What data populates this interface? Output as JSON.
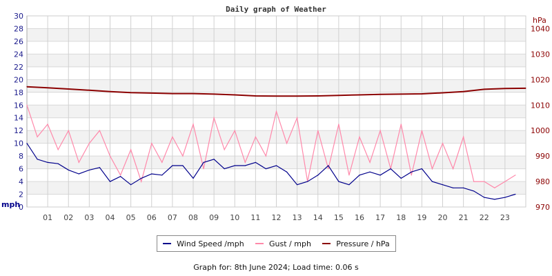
{
  "chart_data": {
    "type": "line",
    "title": "Daily graph of Weather",
    "y_left": {
      "label": "mph",
      "range": [
        0,
        30
      ],
      "ticks": [
        0,
        2,
        4,
        6,
        8,
        10,
        12,
        14,
        16,
        18,
        20,
        22,
        24,
        26,
        28,
        30
      ],
      "color": "#1a1a8c"
    },
    "y_right": {
      "label": "hPa",
      "range": [
        970,
        1045
      ],
      "ticks": [
        970,
        980,
        990,
        1000,
        1010,
        1020,
        1030,
        1040
      ],
      "color": "#8b0000"
    },
    "x": {
      "range": [
        0,
        24
      ],
      "tick_labels": [
        "01",
        "02",
        "03",
        "04",
        "05",
        "06",
        "07",
        "08",
        "09",
        "10",
        "11",
        "12",
        "13",
        "14",
        "15",
        "16",
        "17",
        "18",
        "19",
        "20",
        "21",
        "22",
        "23"
      ]
    },
    "grid": true,
    "series": [
      {
        "name": "Wind Speed /mph",
        "color": "#00008b",
        "axis": "left",
        "x": [
          0,
          0.5,
          1,
          1.5,
          2,
          2.5,
          3,
          3.5,
          4,
          4.5,
          5,
          5.5,
          6,
          6.5,
          7,
          7.5,
          8,
          8.5,
          9,
          9.5,
          10,
          10.5,
          11,
          11.5,
          12,
          12.5,
          13,
          13.5,
          14,
          14.5,
          15,
          15.5,
          16,
          16.5,
          17,
          17.5,
          18,
          18.5,
          19,
          19.5,
          20,
          20.5,
          21,
          21.5,
          22,
          22.5,
          23,
          23.5
        ],
        "values": [
          10,
          7.5,
          7,
          6.8,
          5.8,
          5.2,
          5.8,
          6.2,
          4,
          4.8,
          3.5,
          4.5,
          5.2,
          5,
          6.5,
          6.5,
          4.5,
          7,
          7.5,
          6,
          6.5,
          6.5,
          7,
          6,
          6.5,
          5.5,
          3.5,
          4,
          5,
          6.5,
          4,
          3.5,
          5,
          5.5,
          5,
          6,
          4.5,
          5.5,
          6,
          4,
          3.5,
          3,
          3,
          2.5,
          1.5,
          1.2,
          1.5,
          2
        ]
      },
      {
        "name": "Gust / mph",
        "color": "#ff88aa",
        "axis": "left",
        "x": [
          0,
          0.5,
          1,
          1.5,
          2,
          2.5,
          3,
          3.5,
          4,
          4.5,
          5,
          5.5,
          6,
          6.5,
          7,
          7.5,
          8,
          8.5,
          9,
          9.5,
          10,
          10.5,
          11,
          11.5,
          12,
          12.5,
          13,
          13.5,
          14,
          14.5,
          15,
          15.5,
          16,
          16.5,
          17,
          17.5,
          18,
          18.5,
          19,
          19.5,
          20,
          20.5,
          21,
          21.5,
          22,
          22.5,
          23,
          23.5
        ],
        "values": [
          16,
          11,
          13,
          9,
          12,
          7,
          10,
          12,
          8,
          5,
          9,
          4,
          10,
          7,
          11,
          8,
          13,
          6,
          14,
          9,
          12,
          7,
          11,
          8,
          15,
          10,
          14,
          4,
          12,
          6,
          13,
          5,
          11,
          7,
          12,
          6,
          13,
          5,
          12,
          6,
          10,
          6,
          11,
          4,
          4,
          3,
          4,
          5
        ]
      },
      {
        "name": "Pressure / hPa",
        "color": "#8b0000",
        "axis": "right",
        "x": [
          0,
          1,
          2,
          3,
          4,
          5,
          6,
          7,
          8,
          9,
          10,
          11,
          12,
          13,
          14,
          15,
          16,
          17,
          18,
          19,
          20,
          21,
          22,
          23,
          24
        ],
        "values": [
          1017.2,
          1016.8,
          1016.3,
          1015.8,
          1015.3,
          1014.9,
          1014.7,
          1014.5,
          1014.5,
          1014.3,
          1014,
          1013.6,
          1013.5,
          1013.5,
          1013.6,
          1013.8,
          1014,
          1014.2,
          1014.3,
          1014.4,
          1014.8,
          1015.3,
          1016.2,
          1016.5,
          1016.6
        ]
      }
    ],
    "legend_position": "bottom"
  },
  "footer": "Graph for: 8th June 2024; Load time: 0.06 s"
}
